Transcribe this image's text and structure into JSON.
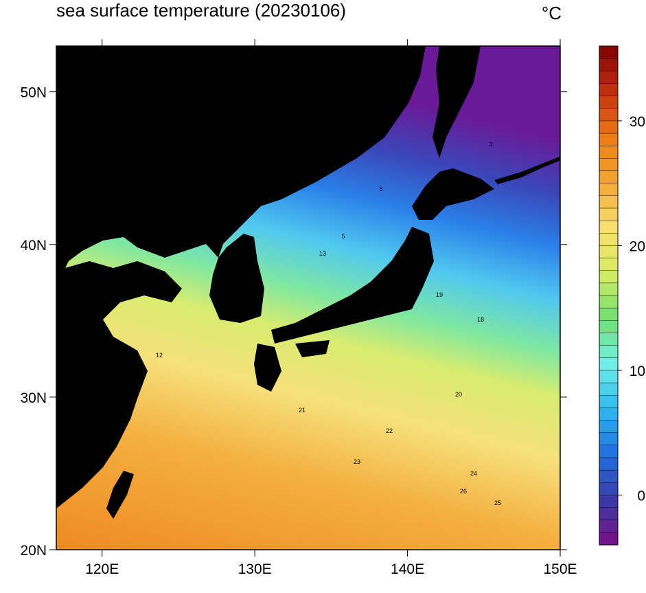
{
  "map": {
    "title": "sea surface temperature (20230106)",
    "unit": "°C",
    "xlim": [
      117,
      150
    ],
    "ylim": [
      20,
      53
    ],
    "xticks": [
      {
        "value": 120,
        "label": "120E"
      },
      {
        "value": 130,
        "label": "130E"
      },
      {
        "value": 140,
        "label": "140E"
      },
      {
        "value": 150,
        "label": "150E"
      }
    ],
    "yticks": [
      {
        "value": 20,
        "label": "20N"
      },
      {
        "value": 30,
        "label": "30N"
      },
      {
        "value": 40,
        "label": "40N"
      },
      {
        "value": 50,
        "label": "50N"
      }
    ],
    "colorbar": {
      "lim": [
        -4,
        36
      ],
      "ticks": [
        0,
        10,
        20,
        30
      ],
      "colormap": [
        "#7a0f85",
        "#3a3aa8",
        "#1e6fe0",
        "#30b8f0",
        "#70f0e8",
        "#70e070",
        "#d8ec60",
        "#f8e070",
        "#f2a830",
        "#ee7a14",
        "#c03010",
        "#800000"
      ]
    },
    "contour_labels": [
      "19",
      "20",
      "21",
      "22",
      "23",
      "24",
      "25",
      "26",
      "13",
      "12",
      "5",
      "3",
      "6",
      "18"
    ]
  }
}
